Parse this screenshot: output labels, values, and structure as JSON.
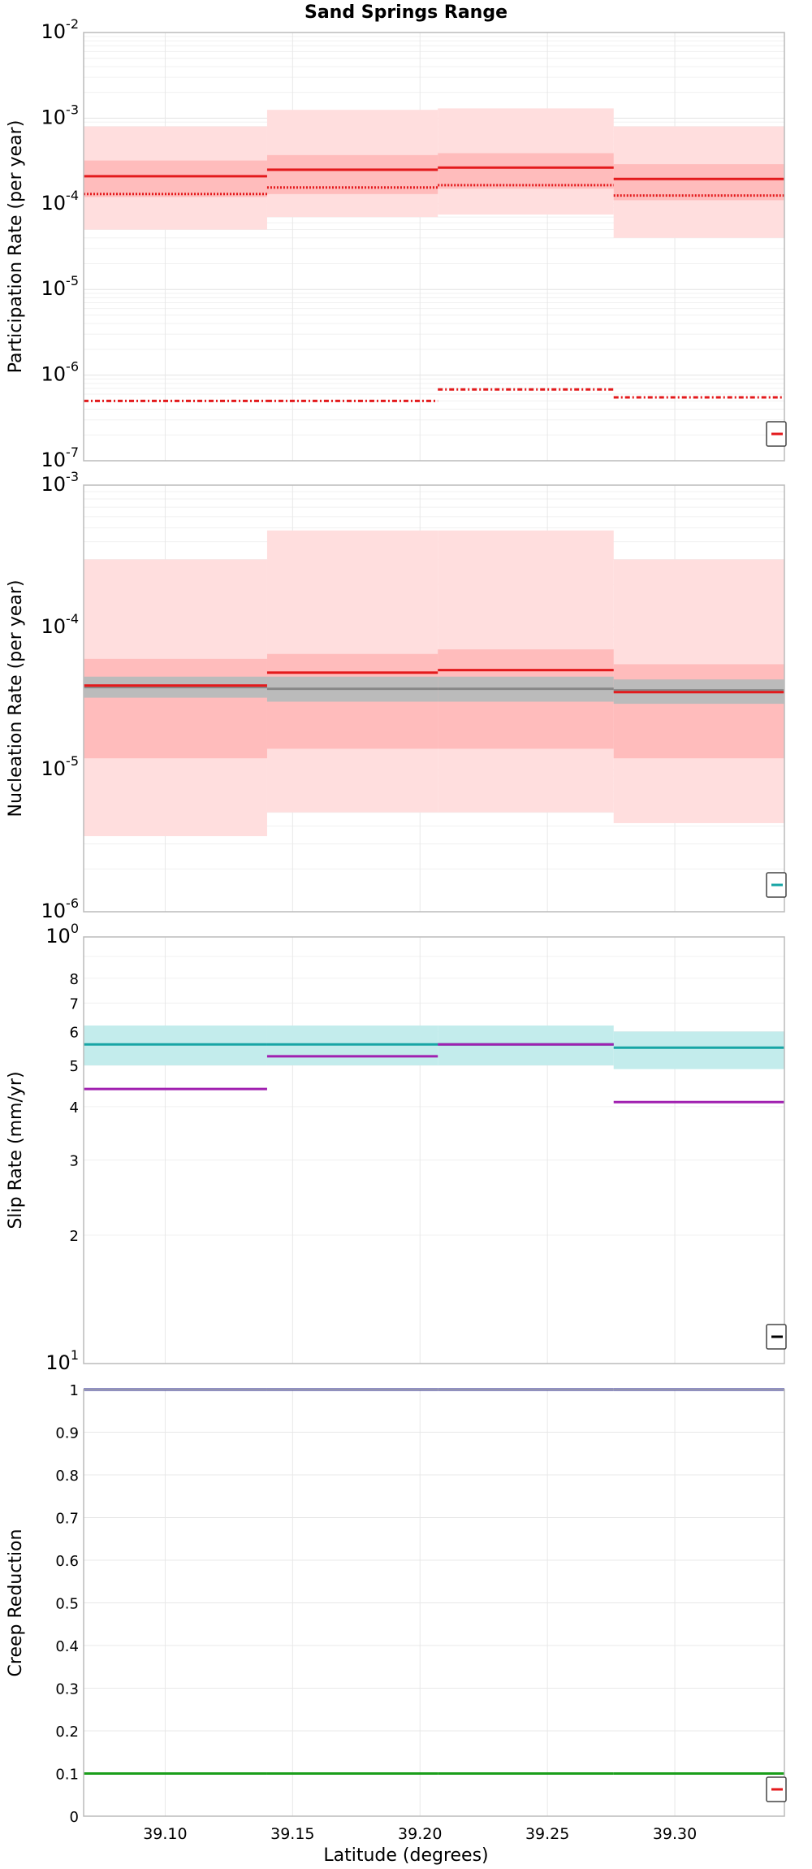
{
  "title": "Sand Springs Range",
  "xlabel": "Latitude (degrees)",
  "colors": {
    "red": "#e31a1c",
    "red_band_light": "#ffdede",
    "red_band_dark": "#ffbcbc",
    "gray": "#888888",
    "gray_band": "#bbbbbb",
    "cyan": "#17a5a5",
    "cyan_band": "#c3ecec",
    "purple": "#a020b0",
    "navy": "#1f1f8c",
    "green": "#1a9e1a",
    "axis": "#bbbbbb",
    "grid": "#e8e8e8"
  },
  "chart_data": [
    {
      "type": "line",
      "name": "participation",
      "ylabel": "Participation Rate (per year)",
      "yscale": "log",
      "ylim": [
        1e-07,
        0.01
      ],
      "xlim": [
        39.068,
        39.343
      ],
      "xticks": [
        39.1,
        39.15,
        39.2,
        39.25,
        39.3
      ],
      "ytick_labels": [
        {
          "base": "10",
          "exp": "-7",
          "value": 1e-07
        },
        {
          "base": "10",
          "exp": "-6",
          "value": 1e-06
        },
        {
          "base": "10",
          "exp": "-5",
          "value": 1e-05
        },
        {
          "base": "10",
          "exp": "-4",
          "value": 0.0001
        },
        {
          "base": "10",
          "exp": "-3",
          "value": 0.001
        },
        {
          "base": "10",
          "exp": "-2",
          "value": 0.01
        }
      ],
      "segments": [
        39.068,
        39.14,
        39.207,
        39.276,
        39.343
      ],
      "bands": [
        {
          "color": "red_band_light",
          "lo": [
            5e-05,
            7e-05,
            7.5e-05,
            4e-05
          ],
          "hi": [
            0.0008,
            0.00125,
            0.0013,
            0.0008
          ]
        },
        {
          "color": "red_band_dark",
          "lo": [
            0.00012,
            0.00013,
            0.00015,
            0.00011
          ],
          "hi": [
            0.00032,
            0.00037,
            0.00039,
            0.00029
          ]
        }
      ],
      "lines": [
        {
          "color": "red",
          "style": "solid",
          "values": [
            0.00021,
            0.00025,
            0.000265,
            0.000195
          ]
        },
        {
          "color": "red",
          "style": "dotted",
          "values": [
            0.00013,
            0.000155,
            0.000165,
            0.000125
          ]
        },
        {
          "color": "red",
          "style": "dashdot",
          "values": [
            5e-07,
            5e-07,
            6.8e-07,
            5.5e-07
          ]
        }
      ],
      "legend_color": "red"
    },
    {
      "type": "line",
      "name": "nucleation",
      "ylabel": "Nucleation Rate (per year)",
      "yscale": "log",
      "ylim": [
        1e-06,
        0.001
      ],
      "xlim": [
        39.068,
        39.343
      ],
      "xticks": [
        39.1,
        39.15,
        39.2,
        39.25,
        39.3
      ],
      "ytick_labels": [
        {
          "base": "10",
          "exp": "-6",
          "value": 1e-06
        },
        {
          "base": "10",
          "exp": "-5",
          "value": 1e-05
        },
        {
          "base": "10",
          "exp": "-4",
          "value": 0.0001
        },
        {
          "base": "10",
          "exp": "-3",
          "value": 0.001
        }
      ],
      "segments": [
        39.068,
        39.14,
        39.207,
        39.276,
        39.343
      ],
      "bands": [
        {
          "color": "red_band_light",
          "lo": [
            3.4e-06,
            5e-06,
            5e-06,
            4.2e-06
          ],
          "hi": [
            0.0003,
            0.00048,
            0.00048,
            0.0003
          ]
        },
        {
          "color": "red_band_dark",
          "lo": [
            1.2e-05,
            1.4e-05,
            1.4e-05,
            1.2e-05
          ],
          "hi": [
            6e-05,
            6.5e-05,
            7e-05,
            5.5e-05
          ]
        },
        {
          "color": "gray_band",
          "lo": [
            3.2e-05,
            3e-05,
            3e-05,
            2.9e-05
          ],
          "hi": [
            4.5e-05,
            4.5e-05,
            4.5e-05,
            4.3e-05
          ]
        }
      ],
      "lines": [
        {
          "color": "gray",
          "style": "solid",
          "values": [
            3.8e-05,
            3.7e-05,
            3.7e-05,
            3.6e-05
          ]
        },
        {
          "color": "red",
          "style": "solid",
          "values": [
            3.9e-05,
            4.8e-05,
            5e-05,
            3.5e-05
          ]
        }
      ],
      "legend_color": "cyan"
    },
    {
      "type": "line",
      "name": "slip",
      "ylabel": "Slip Rate (mm/yr)",
      "yscale": "log",
      "ylim": [
        1,
        10
      ],
      "xlim": [
        39.068,
        39.343
      ],
      "xticks": [
        39.1,
        39.15,
        39.2,
        39.25,
        39.3
      ],
      "ytick_labels": [
        {
          "base": "10",
          "exp": "1",
          "value": 1
        },
        {
          "base": "2",
          "exp": "",
          "value": 2
        },
        {
          "base": "3",
          "exp": "",
          "value": 3
        },
        {
          "base": "4",
          "exp": "",
          "value": 4
        },
        {
          "base": "5",
          "exp": "",
          "value": 5
        },
        {
          "base": "6",
          "exp": "",
          "value": 6
        },
        {
          "base": "7",
          "exp": "",
          "value": 7
        },
        {
          "base": "8",
          "exp": "",
          "value": 8
        },
        {
          "base": "10",
          "exp": "0",
          "value": 10
        }
      ],
      "segments": [
        39.068,
        39.14,
        39.207,
        39.276,
        39.343
      ],
      "bands": [
        {
          "color": "cyan_band",
          "lo": [
            5.0,
            5.0,
            5.0,
            4.9
          ],
          "hi": [
            6.2,
            6.2,
            6.2,
            6.0
          ]
        }
      ],
      "lines": [
        {
          "color": "cyan",
          "style": "solid",
          "values": [
            5.6,
            5.6,
            5.6,
            5.5
          ]
        },
        {
          "color": "purple",
          "style": "solid",
          "values": [
            4.4,
            5.25,
            5.6,
            4.1
          ]
        }
      ],
      "legend_color": "black"
    },
    {
      "type": "line",
      "name": "creep",
      "ylabel": "Creep Reduction",
      "yscale": "linear",
      "ylim": [
        0,
        1
      ],
      "xlim": [
        39.068,
        39.343
      ],
      "xticks": [
        39.1,
        39.15,
        39.2,
        39.25,
        39.3
      ],
      "xtick_labels": [
        "39.10",
        "39.15",
        "39.20",
        "39.25",
        "39.30"
      ],
      "ytick_labels": [
        {
          "base": "0",
          "exp": "",
          "value": 0
        },
        {
          "base": "0.1",
          "exp": "",
          "value": 0.1
        },
        {
          "base": "0.2",
          "exp": "",
          "value": 0.2
        },
        {
          "base": "0.3",
          "exp": "",
          "value": 0.3
        },
        {
          "base": "0.4",
          "exp": "",
          "value": 0.4
        },
        {
          "base": "0.5",
          "exp": "",
          "value": 0.5
        },
        {
          "base": "0.6",
          "exp": "",
          "value": 0.6
        },
        {
          "base": "0.7",
          "exp": "",
          "value": 0.7
        },
        {
          "base": "0.8",
          "exp": "",
          "value": 0.8
        },
        {
          "base": "0.9",
          "exp": "",
          "value": 0.9
        },
        {
          "base": "1",
          "exp": "",
          "value": 1
        }
      ],
      "segments": [
        39.068,
        39.14,
        39.207,
        39.276,
        39.343
      ],
      "bands": [],
      "lines": [
        {
          "color": "navy",
          "style": "solid",
          "values": [
            1,
            1,
            1,
            1
          ]
        },
        {
          "color": "green",
          "style": "solid",
          "values": [
            0.1,
            0.1,
            0.1,
            0.1
          ]
        }
      ],
      "legend_color": "red"
    }
  ]
}
